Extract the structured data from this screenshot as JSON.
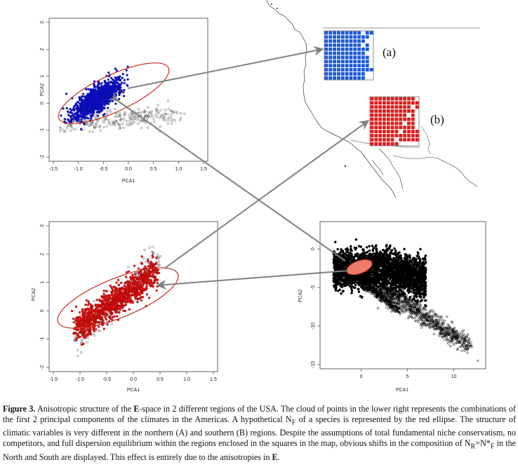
{
  "figure": {
    "panel_label_a": "(a)",
    "panel_label_b": "(b)"
  },
  "plots": {
    "top_left": {
      "xlabel": "PCA1",
      "ylabel": "PCA2",
      "xticks": [
        "-1.5",
        "-1.0",
        "-0.5",
        "0.0",
        "0.5",
        "1.0",
        "1.5"
      ],
      "yticks": [
        "-2",
        "-1",
        "0",
        "1",
        "2",
        "3"
      ],
      "xlim": [
        -1.5,
        1.5
      ],
      "ylim": [
        -2,
        3
      ],
      "point_color": "#1010c8"
    },
    "bottom_left": {
      "xlabel": "PCA1",
      "ylabel": "PCA2",
      "xticks": [
        "-1.5",
        "-1.0",
        "-0.5",
        "0.0",
        "0.5",
        "1.0",
        "1.5"
      ],
      "yticks": [
        "-2",
        "-1",
        "0",
        "1",
        "2",
        "3"
      ],
      "xlim": [
        -1.5,
        1.5
      ],
      "ylim": [
        -2,
        3
      ],
      "point_color": "#e01010"
    },
    "bottom_right": {
      "xlabel": "PCA1",
      "ylabel": "PCA2",
      "xticks": [
        "0",
        "5",
        "10"
      ],
      "yticks": [
        "-15",
        "-10",
        "-5",
        "0"
      ],
      "xlim": [
        -4,
        13
      ],
      "ylim": [
        -15,
        3
      ]
    }
  },
  "colors": {
    "ellipse": "#c8301e",
    "nf_fill": "#f07a6a",
    "arrow": "#808080",
    "region_a": "#1a58d8",
    "region_b": "#e41818"
  },
  "caption": {
    "label": "Figure 3.",
    "t1": " Anisotropic structure of the ",
    "e1": "E",
    "t2": "-space in 2 different regions of the USA. The cloud of points in the lower right represents the combinations of the first 2 principal components of the climates in the Americas. A hypothetical N",
    "sub1": "F",
    "t3": " of a species is represented by the red ellipse. The structure of climatic variables is very different in the northern (A) and southern (B) regions. Despite the assumptions of total fundamental niche conservatism, no competitors, and full dispersion equilibrium within the regions enclosed in the squares in the map, obvious shifts in the composition of N",
    "sub2": "R",
    "t4": "=N*",
    "sub3": "F",
    "t5": " in the North and South are displayed. This effect is entirely due to the anisotropies in ",
    "e2": "E",
    "t6": "."
  }
}
